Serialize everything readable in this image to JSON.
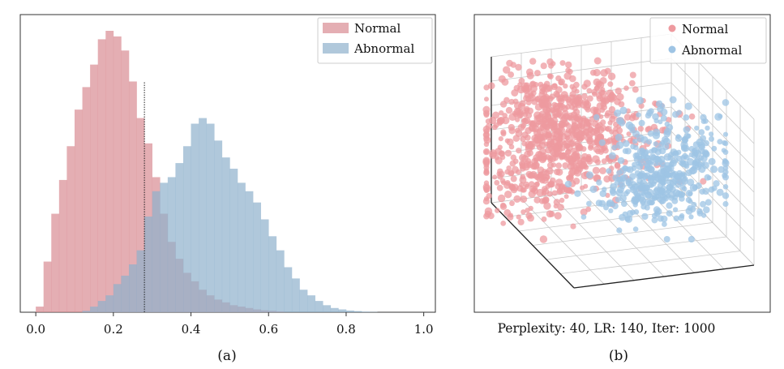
{
  "chart_data": [
    {
      "type": "histogram",
      "panel_label": "(a)",
      "title": "",
      "xlabel": "",
      "ylabel": "",
      "xlim": [
        -0.04,
        1.03
      ],
      "ylim": [
        0,
        1.0
      ],
      "y_unit": "relative frequency (no printed axis)",
      "xticks": [
        0.0,
        0.2,
        0.4,
        0.6,
        0.8,
        1.0
      ],
      "xtick_labels": [
        "0.0",
        "0.2",
        "0.4",
        "0.6",
        "0.8",
        "1.0"
      ],
      "threshold": 0.28,
      "bin_width": 0.02,
      "legend": {
        "placement": "top-right"
      },
      "series": [
        {
          "name": "Normal",
          "color": "#d98b93",
          "opacity": 0.7,
          "bin_start": 0.0,
          "values": [
            0.02,
            0.18,
            0.35,
            0.47,
            0.59,
            0.72,
            0.8,
            0.88,
            0.97,
            1.0,
            0.98,
            0.93,
            0.82,
            0.69,
            0.6,
            0.48,
            0.35,
            0.25,
            0.19,
            0.14,
            0.11,
            0.08,
            0.06,
            0.045,
            0.035,
            0.025,
            0.02,
            0.015,
            0.01,
            0.007,
            0.005,
            0.003
          ]
        },
        {
          "name": "Abnormal",
          "color": "#8fb0cc",
          "opacity": 0.7,
          "bin_start": 0.0,
          "values": [
            0.0,
            0.0,
            0.0,
            0.0,
            0.0,
            0.0,
            0.005,
            0.02,
            0.04,
            0.06,
            0.1,
            0.13,
            0.17,
            0.22,
            0.34,
            0.43,
            0.46,
            0.48,
            0.53,
            0.59,
            0.67,
            0.69,
            0.67,
            0.61,
            0.55,
            0.51,
            0.46,
            0.43,
            0.39,
            0.33,
            0.27,
            0.22,
            0.16,
            0.12,
            0.08,
            0.06,
            0.04,
            0.025,
            0.015,
            0.01,
            0.006,
            0.004,
            0.002,
            0.001
          ]
        }
      ]
    },
    {
      "type": "scatter3d",
      "panel_label": "(b)",
      "subtitle": "Perplexity: 40, LR: 140, Iter: 1000",
      "legend": {
        "placement": "top-right"
      },
      "series": [
        {
          "name": "Normal",
          "color": "#ee9a9f",
          "cluster": {
            "center": [
              -0.35,
              0.1,
              0.3
            ],
            "spread": [
              0.45,
              0.35,
              0.25
            ]
          }
        },
        {
          "name": "Abnormal",
          "color": "#9ec4e4",
          "cluster": {
            "center": [
              0.45,
              -0.1,
              0.0
            ],
            "spread": [
              0.3,
              0.3,
              0.25
            ]
          }
        }
      ]
    }
  ]
}
